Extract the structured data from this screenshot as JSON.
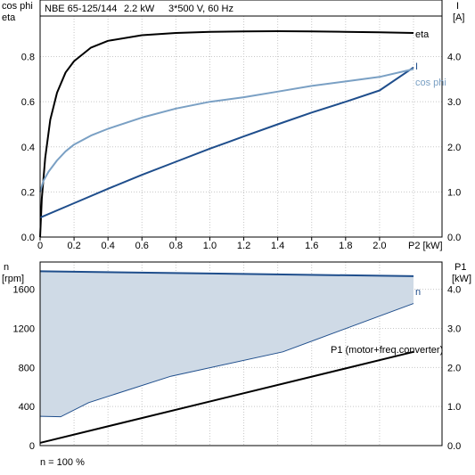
{
  "header": {
    "pump": "NBE 65-125/144",
    "power": "2.2 kW",
    "supply": "3*500 V, 60 Hz"
  },
  "footer": {
    "note": "n = 100 %"
  },
  "colors": {
    "eta": "#000000",
    "current": "#1f4e8c",
    "cosphi": "#7aa0c4",
    "speed": "#1f4e8c",
    "speed_fill": "#cfdae6",
    "p1": "#000000",
    "grid": "#c8c8c8"
  },
  "chart_data": [
    {
      "type": "line",
      "left_axis": {
        "label_lines": [
          "cos phi",
          "eta"
        ],
        "ylim": [
          0,
          0.98
        ],
        "ticks": [
          "0.0",
          "0.2",
          "0.4",
          "0.6",
          "0.8"
        ],
        "tick_values": [
          0,
          0.2,
          0.4,
          0.6,
          0.8
        ]
      },
      "right_axis": {
        "label_lines": [
          "I",
          "[A]"
        ],
        "ylim": [
          0,
          4.9
        ],
        "ticks": [
          "0.0",
          "1.0",
          "2.0",
          "3.0",
          "4.0"
        ],
        "tick_values": [
          0,
          1,
          2,
          3,
          4
        ]
      },
      "x_axis": {
        "label": "P2 [kW]",
        "xlim": [
          0,
          2.4
        ],
        "ticks": [
          "0",
          "0.2",
          "0.4",
          "0.6",
          "0.8",
          "1.0",
          "1.2",
          "1.4",
          "1.6",
          "1.8",
          "2.0"
        ],
        "tick_values": [
          0,
          0.2,
          0.4,
          0.6,
          0.8,
          1.0,
          1.2,
          1.4,
          1.6,
          1.8,
          2.0
        ],
        "end_label_value": 2.2
      },
      "grid": true,
      "series": [
        {
          "name": "eta",
          "axis": "left",
          "x": [
            0,
            0.01,
            0.03,
            0.06,
            0.1,
            0.15,
            0.2,
            0.3,
            0.4,
            0.6,
            0.8,
            1.0,
            1.2,
            1.4,
            1.6,
            1.8,
            2.0,
            2.2
          ],
          "y": [
            0,
            0.17,
            0.35,
            0.52,
            0.64,
            0.73,
            0.78,
            0.84,
            0.87,
            0.895,
            0.905,
            0.91,
            0.912,
            0.913,
            0.912,
            0.91,
            0.908,
            0.905
          ]
        },
        {
          "name": "I",
          "axis": "right",
          "x": [
            0,
            0.2,
            0.4,
            0.6,
            0.8,
            1.0,
            1.2,
            1.4,
            1.6,
            1.8,
            2.0,
            2.2
          ],
          "y": [
            0.43,
            0.75,
            1.07,
            1.38,
            1.67,
            1.96,
            2.23,
            2.5,
            2.76,
            3.0,
            3.25,
            3.76
          ]
        },
        {
          "name": "cos phi",
          "axis": "left",
          "x": [
            0,
            0.02,
            0.05,
            0.1,
            0.15,
            0.2,
            0.3,
            0.4,
            0.6,
            0.8,
            1.0,
            1.2,
            1.4,
            1.6,
            1.8,
            2.0,
            2.2
          ],
          "y": [
            0.2,
            0.25,
            0.29,
            0.34,
            0.38,
            0.41,
            0.45,
            0.48,
            0.53,
            0.57,
            0.6,
            0.62,
            0.645,
            0.67,
            0.69,
            0.71,
            0.745
          ]
        }
      ]
    },
    {
      "type": "area",
      "left_axis": {
        "label_lines": [
          "n",
          "[rpm]"
        ],
        "ylim": [
          0,
          1880
        ],
        "ticks": [
          "0",
          "400",
          "800",
          "1200",
          "1600"
        ],
        "tick_values": [
          0,
          400,
          800,
          1200,
          1600
        ]
      },
      "right_axis": {
        "label_lines": [
          "P1",
          "[kW]"
        ],
        "ylim": [
          0,
          4.7
        ],
        "ticks": [
          "0.0",
          "1.0",
          "2.0",
          "3.0",
          "4.0"
        ],
        "tick_values": [
          0,
          1,
          2,
          3,
          4
        ]
      },
      "grid": true,
      "series": [
        {
          "name": "n",
          "axis": "left",
          "x": [
            0,
            1
          ],
          "y": [
            1785,
            1735
          ]
        },
        {
          "name": "n (lower limit)",
          "axis": "left",
          "x": [
            0,
            0.055,
            0.13,
            0.35,
            0.65,
            1
          ],
          "y": [
            300,
            295,
            440,
            710,
            960,
            1455
          ]
        },
        {
          "name": "P1 (motor+freq.converter)",
          "axis": "right",
          "x": [
            0,
            1
          ],
          "y": [
            0.07,
            2.4
          ]
        }
      ]
    }
  ]
}
